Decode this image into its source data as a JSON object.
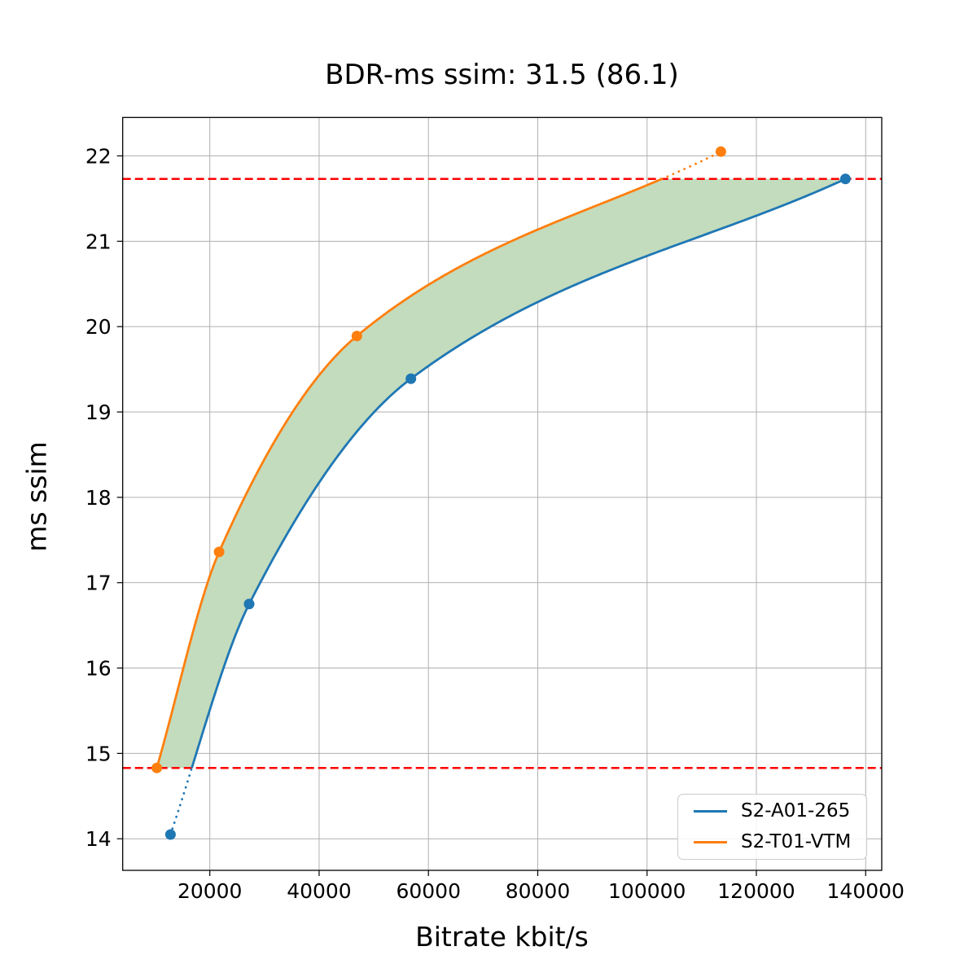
{
  "chart_data": {
    "type": "line",
    "title": "BDR-ms ssim: 31.5 (86.1)",
    "xlabel": "Bitrate kbit/s",
    "ylabel": "ms ssim",
    "xlim": [
      4060,
      142940
    ],
    "ylim": [
      13.63,
      22.45
    ],
    "xticks": [
      20000,
      40000,
      60000,
      80000,
      100000,
      120000,
      140000
    ],
    "yticks": [
      14,
      15,
      16,
      17,
      18,
      19,
      20,
      21,
      22
    ],
    "grid": true,
    "grid_color": "#b0b0b0",
    "axis_color": "#000000",
    "legend_position": "lower right",
    "series": [
      {
        "name": "S2-A01-265",
        "color": "#1f77b4",
        "marker": "circle",
        "x": [
          12800,
          27200,
          56800,
          136300
        ],
        "y": [
          14.05,
          16.75,
          19.39,
          21.73
        ]
      },
      {
        "name": "S2-T01-VTM",
        "color": "#ff7f0e",
        "marker": "circle",
        "x": [
          10300,
          21700,
          46900,
          113500
        ],
        "y": [
          14.83,
          17.36,
          19.89,
          22.05
        ]
      }
    ],
    "hlines": {
      "values": [
        14.83,
        21.73
      ],
      "color": "#ff0000",
      "style": "dashed"
    },
    "overlap_fill": {
      "color": "#c3dcbd",
      "y_range": [
        14.83,
        21.73
      ]
    }
  }
}
